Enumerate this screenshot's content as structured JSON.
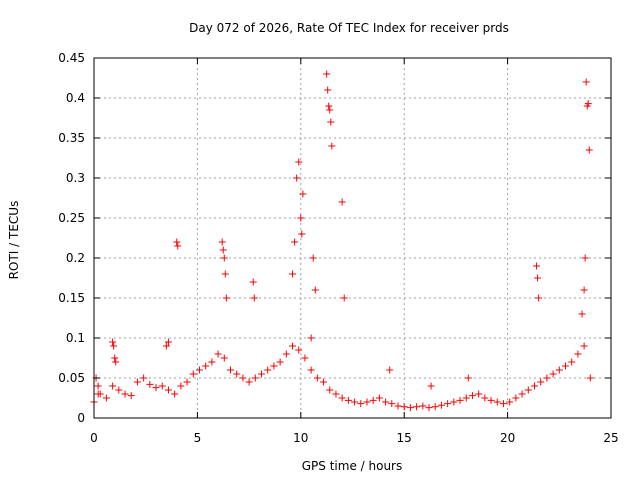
{
  "chart_data": {
    "type": "scatter",
    "title": "Day 072 of 2026, Rate Of TEC Index for receiver prds",
    "xlabel": "GPS time / hours",
    "ylabel": "ROTI / TECUs",
    "xlim": [
      0,
      25
    ],
    "ylim": [
      0,
      0.45
    ],
    "x_ticks": [
      0,
      5,
      10,
      15,
      20,
      25
    ],
    "y_ticks": [
      0,
      0.05,
      0.1,
      0.15,
      0.2,
      0.25,
      0.3,
      0.35,
      0.4,
      0.45
    ],
    "x_tick_labels": [
      "0",
      "5",
      "10",
      "15",
      "20",
      "25"
    ],
    "y_tick_labels": [
      "0",
      "0.05",
      "0.1",
      "0.15",
      "0.2",
      "0.25",
      "0.3",
      "0.35",
      "0.4",
      "0.45"
    ],
    "grid": true,
    "marker": "+",
    "color": "#ff0000",
    "series": [
      {
        "name": "ROTI",
        "x": [
          0.0,
          0.3,
          0.6,
          0.9,
          1.2,
          1.5,
          1.8,
          2.1,
          2.4,
          2.7,
          3.0,
          3.3,
          3.6,
          3.9,
          4.2,
          4.5,
          4.8,
          5.1,
          5.4,
          5.7,
          6.0,
          6.3,
          6.6,
          6.9,
          7.2,
          7.5,
          7.8,
          8.1,
          8.4,
          8.7,
          9.0,
          9.3,
          9.6,
          9.9,
          10.2,
          10.5,
          10.8,
          11.1,
          11.4,
          11.7,
          12.0,
          12.3,
          12.6,
          12.9,
          13.2,
          13.5,
          13.8,
          14.1,
          14.4,
          14.7,
          15.0,
          15.3,
          15.6,
          15.9,
          16.2,
          16.5,
          16.8,
          17.1,
          17.4,
          17.7,
          18.0,
          18.3,
          18.6,
          18.9,
          19.2,
          19.5,
          19.8,
          20.1,
          20.4,
          20.7,
          21.0,
          21.3,
          21.6,
          21.9,
          22.2,
          22.5,
          22.8,
          23.1,
          23.4,
          23.7,
          24.0,
          0.1,
          0.2,
          0.2,
          0.9,
          0.95,
          1.0,
          1.05,
          3.5,
          3.6,
          4.0,
          4.05,
          6.2,
          6.25,
          6.3,
          6.35,
          6.4,
          7.7,
          7.75,
          9.6,
          9.7,
          9.8,
          9.9,
          10.0,
          10.05,
          10.1,
          10.5,
          10.6,
          10.7,
          11.25,
          11.3,
          11.35,
          11.4,
          11.45,
          11.5,
          12.0,
          12.1,
          14.3,
          16.3,
          18.1,
          21.4,
          21.45,
          21.5,
          23.6,
          23.7,
          23.75,
          23.8,
          23.85,
          23.9,
          23.95
        ],
        "y": [
          0.02,
          0.03,
          0.025,
          0.04,
          0.035,
          0.03,
          0.028,
          0.045,
          0.05,
          0.042,
          0.038,
          0.04,
          0.035,
          0.03,
          0.04,
          0.045,
          0.055,
          0.06,
          0.065,
          0.07,
          0.08,
          0.075,
          0.06,
          0.055,
          0.05,
          0.045,
          0.05,
          0.055,
          0.06,
          0.065,
          0.07,
          0.08,
          0.09,
          0.085,
          0.075,
          0.06,
          0.05,
          0.045,
          0.035,
          0.03,
          0.025,
          0.022,
          0.02,
          0.018,
          0.02,
          0.022,
          0.025,
          0.02,
          0.018,
          0.015,
          0.014,
          0.013,
          0.014,
          0.015,
          0.013,
          0.014,
          0.016,
          0.018,
          0.02,
          0.022,
          0.025,
          0.028,
          0.03,
          0.025,
          0.022,
          0.02,
          0.018,
          0.02,
          0.025,
          0.03,
          0.035,
          0.04,
          0.045,
          0.05,
          0.055,
          0.06,
          0.065,
          0.07,
          0.08,
          0.09,
          0.05,
          0.05,
          0.03,
          0.04,
          0.095,
          0.09,
          0.075,
          0.07,
          0.09,
          0.095,
          0.22,
          0.215,
          0.22,
          0.21,
          0.2,
          0.18,
          0.15,
          0.17,
          0.15,
          0.18,
          0.22,
          0.3,
          0.32,
          0.25,
          0.23,
          0.28,
          0.1,
          0.2,
          0.16,
          0.43,
          0.41,
          0.39,
          0.385,
          0.37,
          0.34,
          0.27,
          0.15,
          0.06,
          0.04,
          0.05,
          0.19,
          0.175,
          0.15,
          0.13,
          0.16,
          0.2,
          0.42,
          0.39,
          0.393,
          0.335
        ]
      }
    ]
  }
}
